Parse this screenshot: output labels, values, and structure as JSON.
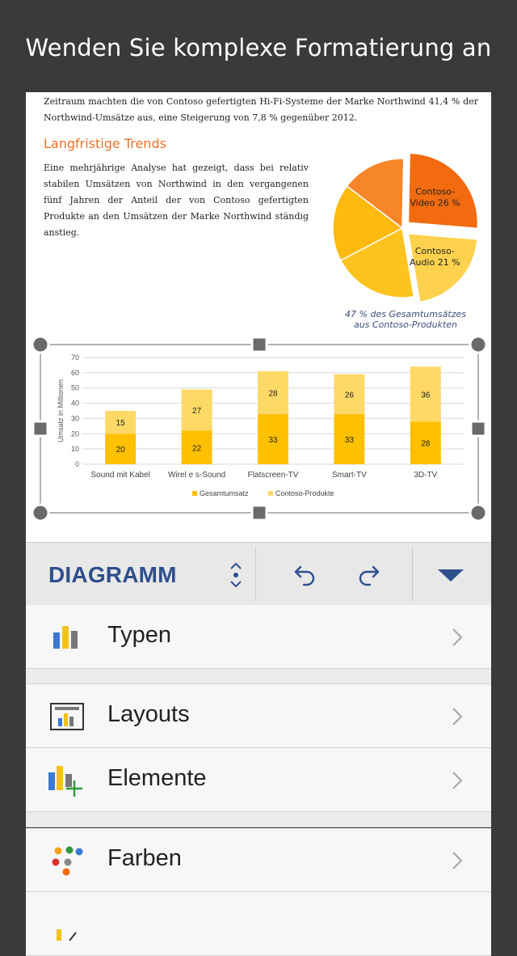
{
  "headline": "Wenden Sie komplexe Formatierung an",
  "document": {
    "intro": "Zeitraum machten die von Contoso gefertigten Hi-Fi-Systeme der Marke Northwind 41,4 % der Northwind-Umsätze aus, eine Steigerung von 7,8 % gegenüber 2012.",
    "heading": "Langfristige Trends",
    "paragraph": "Eine mehrjährige Analyse hat gezeigt, dass bei relativ stabilen Umsätzen von Northwind in den vergangenen fünf Jahren der Anteil der von Contoso gefertigten Produkte an den Umsätzen der Marke Northwind ständig anstieg."
  },
  "chart_data": [
    {
      "type": "pie",
      "slices": [
        {
          "label": "Contoso-Video",
          "value": 26,
          "display": "Contoso-\nVideo 26 %",
          "color": "#f26b0f",
          "exploded": true
        },
        {
          "label": "Contoso-Audio",
          "value": 21,
          "display": "Contoso-\nAudio 21 %",
          "color": "#ffd24d",
          "exploded": true
        },
        {
          "label": "",
          "value": 20,
          "color": "#ffc320"
        },
        {
          "label": "",
          "value": 18,
          "color": "#ffb90f"
        },
        {
          "label": "",
          "value": 15,
          "color": "#f7862a"
        }
      ],
      "caption_line1": "47 % des Gesamtumsätzes",
      "caption_line2": "aus Contoso-Produkten"
    },
    {
      "type": "bar",
      "stacked": true,
      "categories": [
        "Sound mit Kabel",
        "Wirel e s-Sound",
        "Flatscreen-TV",
        "Smart-TV",
        "3D-TV"
      ],
      "series": [
        {
          "name": "Gesamtumsatz",
          "values": [
            20,
            22,
            33,
            33,
            28
          ],
          "color": "#ffc000"
        },
        {
          "name": "Contoso-Produkte",
          "values": [
            15,
            27,
            28,
            26,
            36
          ],
          "color": "#ffd966"
        }
      ],
      "ylabel": "Umsatz in Millionen",
      "ylim": [
        0,
        70
      ],
      "yticks": [
        0,
        10,
        20,
        30,
        40,
        50,
        60,
        70
      ],
      "grid": true,
      "legend": "bottom"
    }
  ],
  "toolbar": {
    "title": "DIAGRAMM",
    "up_down_icon": "up-down-icon",
    "undo_icon": "undo-icon",
    "redo_icon": "redo-icon",
    "collapse_icon": "triangle-down-icon",
    "accent": "#2e4f8c"
  },
  "menu": [
    {
      "label": "Typen",
      "icon": "chart-types-icon"
    },
    {
      "label": "Layouts",
      "icon": "chart-layout-icon"
    },
    {
      "label": "Elemente",
      "icon": "chart-add-element-icon"
    },
    {
      "label": "Farben",
      "icon": "color-palette-icon"
    }
  ]
}
